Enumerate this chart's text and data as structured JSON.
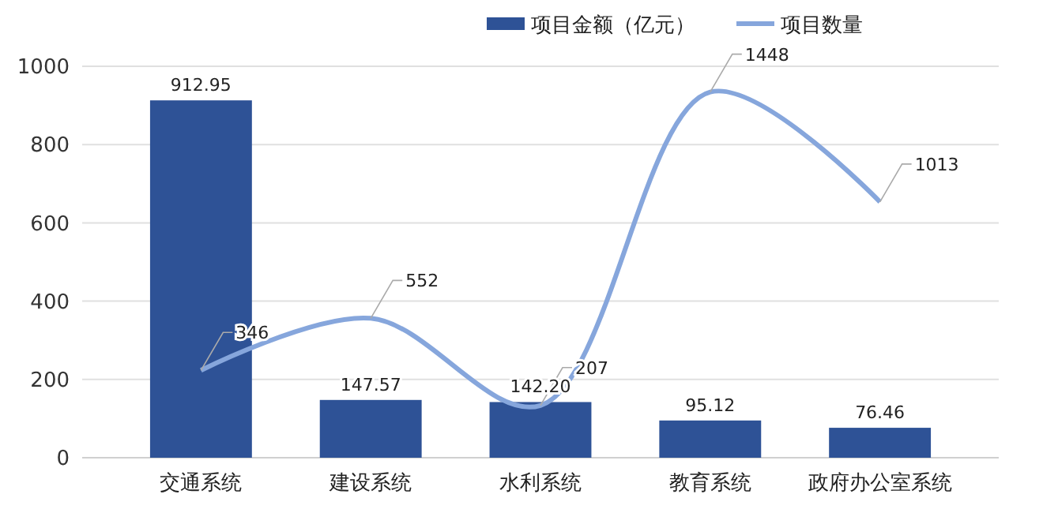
{
  "chart_data": {
    "type": "bar",
    "categories": [
      "交通系统",
      "建设系统",
      "水利系统",
      "教育系统",
      "政府办公室系统"
    ],
    "series": [
      {
        "name": "项目金额（亿元）",
        "color": "#2e5296",
        "values": [
          912.95,
          147.57,
          142.2,
          95.12,
          76.46
        ],
        "value_labels": [
          "912.95",
          "147.57",
          "142.20",
          "95.12",
          "76.46"
        ]
      },
      {
        "name": "项目数量",
        "type": "line",
        "axis": "y2",
        "color": "#86a6dc",
        "values": [
          346,
          552,
          207,
          1448,
          1013
        ],
        "value_labels": [
          "346",
          "552",
          "207",
          "1448",
          "1013"
        ]
      }
    ],
    "ylim": [
      0,
      1000
    ],
    "yticks": [
      0,
      200,
      400,
      600,
      800,
      1000
    ],
    "y2lim": [
      0,
      1550
    ],
    "tick_labels": "xy",
    "grid": "y",
    "legend": "top",
    "marker": "none"
  }
}
